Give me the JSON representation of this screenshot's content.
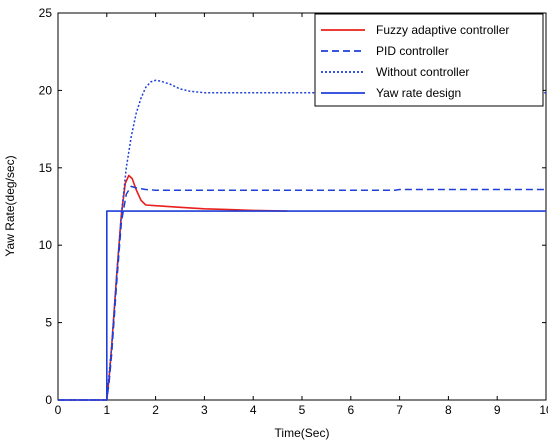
{
  "chart_data": {
    "type": "line",
    "xlabel": "Time(Sec)",
    "ylabel": "Yaw Rate(deg/sec)",
    "xlim": [
      0,
      10
    ],
    "ylim": [
      0,
      25
    ],
    "x_ticks": [
      "0",
      "1",
      "2",
      "3",
      "4",
      "5",
      "6",
      "7",
      "8",
      "9",
      "10"
    ],
    "y_ticks": [
      "0",
      "5",
      "10",
      "15",
      "20",
      "25"
    ],
    "grid": false,
    "legend_position": "top-right",
    "series": [
      {
        "name": "Fuzzy adaptive controller",
        "color": "#e8201c",
        "style": "solid",
        "points": [
          [
            0,
            0
          ],
          [
            1.0,
            0
          ],
          [
            1.05,
            1.5
          ],
          [
            1.1,
            3.5
          ],
          [
            1.2,
            8.0
          ],
          [
            1.3,
            12.0
          ],
          [
            1.38,
            14.0
          ],
          [
            1.45,
            14.5
          ],
          [
            1.52,
            14.3
          ],
          [
            1.6,
            13.6
          ],
          [
            1.7,
            12.9
          ],
          [
            1.8,
            12.6
          ],
          [
            2.0,
            12.55
          ],
          [
            2.5,
            12.45
          ],
          [
            3.0,
            12.35
          ],
          [
            3.5,
            12.3
          ],
          [
            4.0,
            12.25
          ],
          [
            4.7,
            12.2
          ]
        ]
      },
      {
        "name": "PID controller",
        "color": "#1f3fd8",
        "style": "dashed",
        "points": [
          [
            0,
            0
          ],
          [
            1.0,
            0
          ],
          [
            1.05,
            1.2
          ],
          [
            1.1,
            3.0
          ],
          [
            1.2,
            7.5
          ],
          [
            1.3,
            11.5
          ],
          [
            1.4,
            13.3
          ],
          [
            1.5,
            13.8
          ],
          [
            1.6,
            13.7
          ],
          [
            1.8,
            13.6
          ],
          [
            2.0,
            13.55
          ],
          [
            3.0,
            13.55
          ],
          [
            4.0,
            13.55
          ],
          [
            5.0,
            13.55
          ],
          [
            6.0,
            13.55
          ],
          [
            6.9,
            13.55
          ],
          [
            7.0,
            13.6
          ],
          [
            10.0,
            13.6
          ]
        ]
      },
      {
        "name": "Without controller",
        "color": "#1f3fd8",
        "style": "dotted",
        "points": [
          [
            0,
            0
          ],
          [
            1.0,
            0
          ],
          [
            1.1,
            3.5
          ],
          [
            1.2,
            8.0
          ],
          [
            1.3,
            12.0
          ],
          [
            1.4,
            15.0
          ],
          [
            1.5,
            17.0
          ],
          [
            1.6,
            18.5
          ],
          [
            1.7,
            19.5
          ],
          [
            1.8,
            20.2
          ],
          [
            1.9,
            20.55
          ],
          [
            2.0,
            20.65
          ],
          [
            2.1,
            20.6
          ],
          [
            2.3,
            20.4
          ],
          [
            2.5,
            20.1
          ],
          [
            2.7,
            19.95
          ],
          [
            3.0,
            19.85
          ],
          [
            4.0,
            19.85
          ],
          [
            5.0,
            19.85
          ],
          [
            6.0,
            19.85
          ],
          [
            7.0,
            19.85
          ],
          [
            8.0,
            19.85
          ],
          [
            10.0,
            19.85
          ]
        ]
      },
      {
        "name": "Yaw rate design",
        "color": "#1f3fd8",
        "style": "solid",
        "points": [
          [
            0,
            0
          ],
          [
            1.0,
            0
          ],
          [
            1.0,
            12.2
          ],
          [
            10.0,
            12.2
          ]
        ]
      }
    ]
  }
}
